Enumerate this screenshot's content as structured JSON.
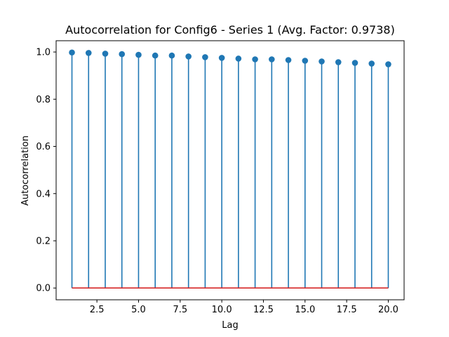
{
  "chart_data": {
    "type": "stem",
    "title": "Autocorrelation for Config6 - Series 1 (Avg. Factor: 0.9738)",
    "xlabel": "Lag",
    "ylabel": "Autocorrelation",
    "x": [
      1,
      2,
      3,
      4,
      5,
      6,
      7,
      8,
      9,
      10,
      11,
      12,
      13,
      14,
      15,
      16,
      17,
      18,
      19,
      20
    ],
    "values": [
      0.998,
      0.996,
      0.993,
      0.991,
      0.988,
      0.985,
      0.985,
      0.981,
      0.978,
      0.975,
      0.972,
      0.969,
      0.969,
      0.966,
      0.963,
      0.96,
      0.957,
      0.954,
      0.951,
      0.948
    ],
    "xlim": [
      0.05,
      20.95
    ],
    "ylim": [
      -0.0499,
      1.0478
    ],
    "xticks": [
      2.5,
      5.0,
      7.5,
      10.0,
      12.5,
      15.0,
      17.5,
      20.0
    ],
    "xtick_labels": [
      "2.5",
      "5.0",
      "7.5",
      "10.0",
      "12.5",
      "15.0",
      "17.5",
      "20.0"
    ],
    "yticks": [
      0.0,
      0.2,
      0.4,
      0.6,
      0.8,
      1.0
    ],
    "ytick_labels": [
      "0.0",
      "0.2",
      "0.4",
      "0.6",
      "0.8",
      "1.0"
    ],
    "grid": false,
    "colors": {
      "stem": "#1f77b4",
      "marker": "#1f77b4",
      "baseline": "#d62728"
    }
  }
}
